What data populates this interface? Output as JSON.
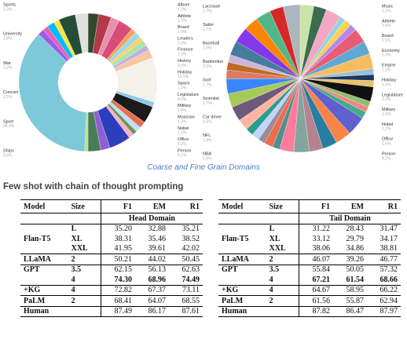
{
  "chart_data": [
    {
      "type": "donut",
      "categories": [
        null,
        null,
        null,
        null,
        "Album",
        "Athlete",
        "Board",
        "Leaders",
        "Finance",
        "History",
        "Holiday",
        "Space",
        "Legislature",
        "Military",
        "Musician",
        "Nobel",
        "Office",
        "Person",
        null,
        null,
        "Ships",
        "Sport",
        "Concert",
        "War",
        "University",
        "Sports",
        null,
        null
      ],
      "values": [
        2.5,
        3.0,
        2.0,
        3.5,
        1.2,
        1.5,
        1.0,
        1.4,
        1.3,
        2.0,
        10.5,
        1.2,
        4.0,
        1.6,
        1.3,
        1.0,
        1.2,
        5.1,
        2.2,
        3.0,
        0.8,
        36.9,
        1.5,
        1.2,
        1.8,
        1.3,
        4.0,
        3.0
      ],
      "value_labels": [
        null,
        null,
        null,
        null,
        "1.2%",
        "1.5%",
        "1.0%",
        "1.4%",
        "1.3%",
        "2.0%",
        "10.5%",
        "1.2%",
        "4.0%",
        "1.6%",
        "1.3%",
        "1.0%",
        "1.2%",
        "5.1%",
        null,
        null,
        "0.8%",
        "36.9%",
        "1.5%",
        "1.2%",
        "1.8%",
        "1.3%",
        null,
        null
      ],
      "colors": [
        "#2e4a2e",
        "#b23a48",
        "#e98fb0",
        "#d94c7a",
        "#f4a261",
        "#9fd8e6",
        "#ffd166",
        "#a8e6a3",
        "#c3b1e1",
        "#f7c6a3",
        "#f4f1ea",
        "#8ecae6",
        "#1b1b1b",
        "#e76f51",
        "#bde0fe",
        "#6a994e",
        "#ffafcc",
        "#2b3fbd",
        "#8d5fd3",
        "#4a7c59",
        "#b5e48c",
        "#7dc8d9",
        "#9b5de5",
        "#f15bb5",
        "#00bbf9",
        "#fee440",
        "#264d38",
        "#e0e0e0"
      ]
    },
    {
      "type": "pie",
      "categories": [
        null,
        null,
        null,
        "Music",
        "Athlete",
        "Board",
        null,
        null,
        null,
        "Economy",
        "Empire",
        "Holiday",
        "Legislature",
        "Military",
        "Nobel",
        "Office",
        "Person",
        null,
        null,
        null,
        null,
        null,
        "NBA",
        "NFL",
        "Car driver",
        "Scientist",
        "Golf",
        "Badminton",
        null,
        null,
        null,
        "Baseball",
        "Sailor",
        "Lacrosse",
        null,
        null,
        null,
        null,
        null,
        null
      ],
      "values": [
        3.0,
        2.8,
        3.4,
        1.2,
        1.6,
        1.5,
        3.1,
        2.9,
        3.3,
        1.3,
        1.3,
        1.4,
        3.2,
        1.3,
        1.2,
        1.5,
        4.2,
        3.5,
        3.2,
        3.0,
        3.4,
        3.1,
        1.6,
        1.9,
        1.5,
        1.7,
        1.7,
        2.5,
        3.2,
        3.0,
        3.3,
        1.9,
        1.7,
        1.7,
        3.1,
        3.4,
        3.2,
        3.3,
        3.0,
        3.7
      ],
      "value_labels": [
        null,
        null,
        null,
        "1.2%",
        "1.6%",
        "1.5%",
        null,
        null,
        null,
        "1.3%",
        "1.3%",
        "1.4%",
        "3.2%",
        "1.3%",
        "1.2%",
        "1.5%",
        "4.2%",
        null,
        null,
        null,
        null,
        null,
        "1.6%",
        "1.9%",
        "1.5%",
        "1.7%",
        "1.7%",
        "2.5%",
        null,
        null,
        null,
        "1.9%",
        "1.7%",
        "1.7%",
        null,
        null,
        null,
        null,
        null,
        null
      ],
      "colors": [
        "#c9e4a6",
        "#3d6b4f",
        "#f2a7c3",
        "#8fd3e8",
        "#ffcf56",
        "#b388eb",
        "#e85d75",
        "#5fa8d3",
        "#f6bd60",
        "#98c1d9",
        "#1d3557",
        "#e9c46a",
        "#111111",
        "#90be6d",
        "#f28482",
        "#43aa8b",
        "#5e60ce",
        "#f9844a",
        "#277da1",
        "#b5838d",
        "#84a59d",
        "#ff7b9c",
        "#4d908e",
        "#ee6c4d",
        "#9a8c98",
        "#c1d3fe",
        "#2a9d8f",
        "#ffb4a2",
        "#6d597a",
        "#a7c957",
        "#3a86ff",
        "#e07a5f",
        "#bc6c25",
        "#cdb4db",
        "#457b9d",
        "#8338ec",
        "#fb8500",
        "#52b788",
        "#d62828",
        "#adb5bd"
      ]
    }
  ],
  "caption": "Coarse and Fine Grain Domains",
  "heading": "Few shot with chain of thought prompting",
  "tables": [
    {
      "columns": [
        "Model",
        "Size",
        "F1",
        "EM",
        "R1"
      ],
      "group": "Head Domain",
      "rows": [
        [
          null,
          "L",
          "35.20",
          "32.88",
          "35.21"
        ],
        [
          "Flan-T5",
          "XL",
          "38.31",
          "35.46",
          "38.52"
        ],
        [
          null,
          "XXL",
          "41.95",
          "39.61",
          "42.02"
        ],
        [
          "LLaMA",
          "2",
          "50.21",
          "44.02",
          "50.45"
        ],
        [
          "GPT",
          "3.5",
          "62.15",
          "56.13",
          "62.63"
        ],
        [
          null,
          "4",
          "74.30",
          "68.96",
          "74.49"
        ],
        [
          "+KG",
          "4",
          "72.82",
          "67.37",
          "73.11"
        ],
        [
          "PaLM",
          "2",
          "68.41",
          "64.07",
          "68.55"
        ],
        [
          "Human",
          null,
          "87.49",
          "86.17",
          "87.61"
        ]
      ],
      "bold_row": 5
    },
    {
      "columns": [
        "Model",
        "Size",
        "F1",
        "EM",
        "R1"
      ],
      "group": "Tail Domain",
      "rows": [
        [
          null,
          "L",
          "31.22",
          "28.43",
          "31.47"
        ],
        [
          "Flan-T5",
          "XL",
          "33.12",
          "29.79",
          "34.17"
        ],
        [
          null,
          "XXL",
          "38.06",
          "34.86",
          "38.81"
        ],
        [
          "LLaMA",
          "2",
          "46.07",
          "39.26",
          "46.77"
        ],
        [
          "GPT",
          "3.5",
          "55.84",
          "50.05",
          "57.32"
        ],
        [
          null,
          "4",
          "67.21",
          "61.54",
          "68.66"
        ],
        [
          "+KG",
          "4",
          "64.67",
          "58.95",
          "66.22"
        ],
        [
          "PaLM",
          "2",
          "61.56",
          "55.87",
          "62.94"
        ],
        [
          "Human",
          null,
          "87.82",
          "86.47",
          "87.97"
        ]
      ],
      "bold_row": 5
    }
  ]
}
